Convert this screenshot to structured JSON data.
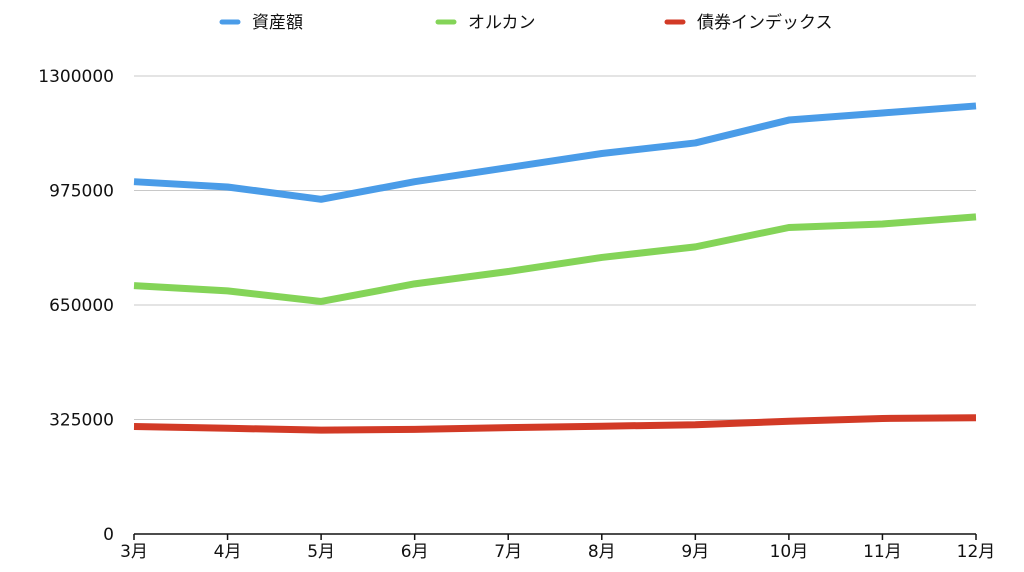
{
  "chart_data": {
    "type": "line",
    "categories": [
      "3月",
      "4月",
      "5月",
      "6月",
      "7月",
      "8月",
      "9月",
      "10月",
      "11月",
      "12月"
    ],
    "series": [
      {
        "name": "資産額",
        "color": "#4a9ce8",
        "values": [
          1000000,
          985000,
          950000,
          1000000,
          1040000,
          1080000,
          1110000,
          1175000,
          1195000,
          1215000
        ]
      },
      {
        "name": "オルカン",
        "color": "#84d458",
        "values": [
          705000,
          690000,
          660000,
          710000,
          745000,
          785000,
          815000,
          870000,
          880000,
          900000
        ]
      },
      {
        "name": "債券インデックス",
        "color": "#d23a26",
        "values": [
          305000,
          300000,
          295000,
          297000,
          302000,
          306000,
          310000,
          320000,
          328000,
          330000
        ]
      }
    ],
    "ylim": [
      0,
      1300000
    ],
    "yticks": [
      "0",
      "325000",
      "650000",
      "975000",
      "1300000"
    ],
    "grid": true,
    "legend": "top"
  }
}
